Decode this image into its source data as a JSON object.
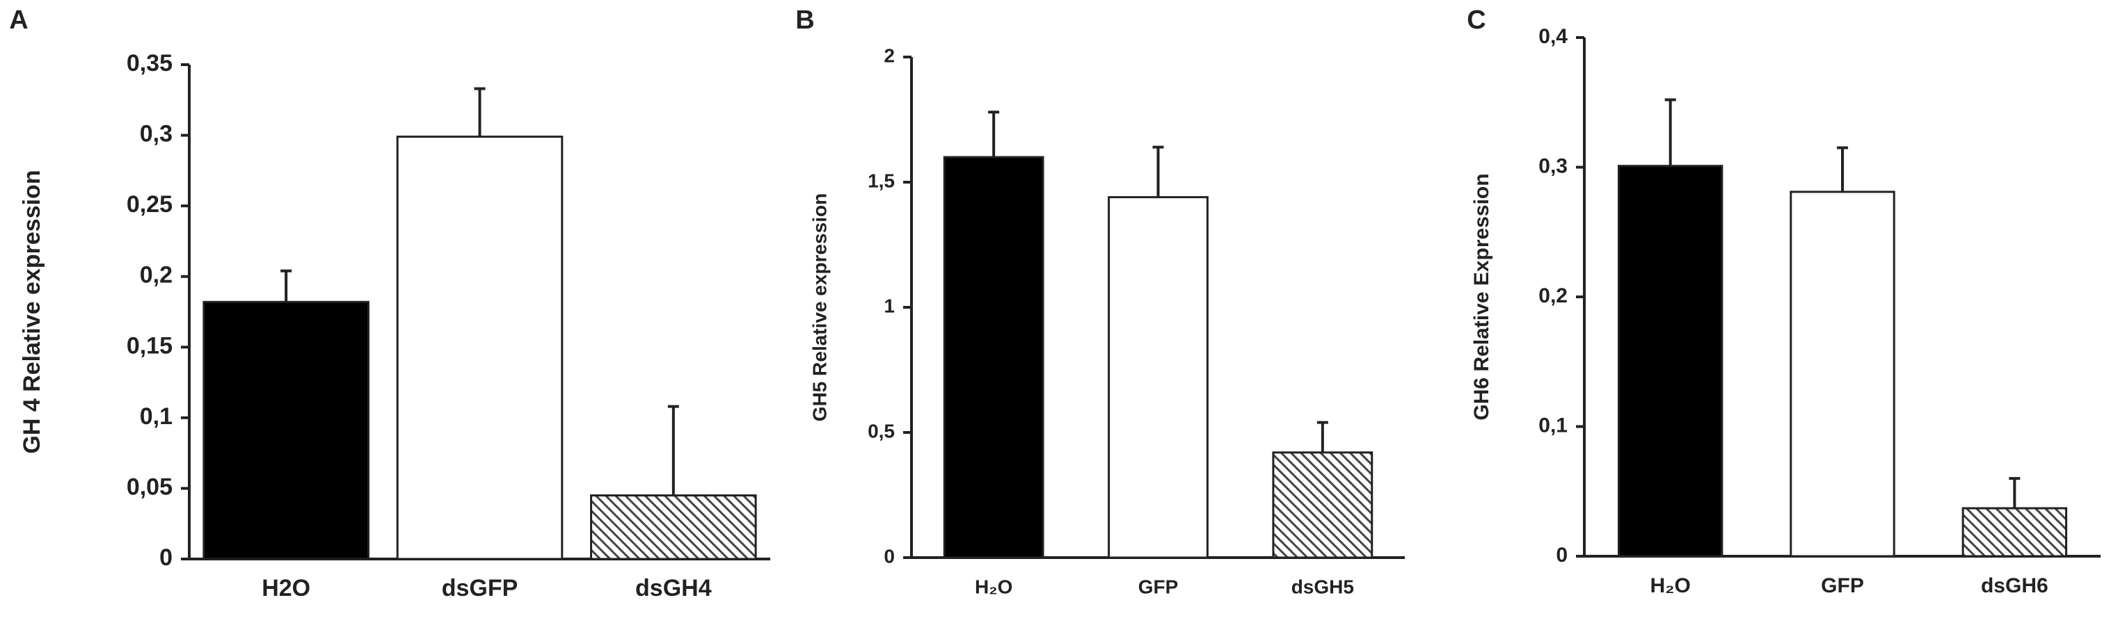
{
  "chart_data": [
    {
      "type": "bar",
      "panel": "A",
      "ylabel": "GH 4 Relative expression",
      "categories": [
        "H2O",
        "dsGFP",
        "dsGH4"
      ],
      "values": [
        0.182,
        0.299,
        0.045
      ],
      "errors": [
        0.022,
        0.034,
        0.063
      ],
      "colors": [
        "#000000",
        "#ffffff",
        "#555555"
      ],
      "hatched": [
        false,
        false,
        true
      ],
      "ylim": [
        0,
        0.35
      ],
      "yticks": [
        0,
        {
          "value": 0.05,
          "label": "0,05"
        },
        {
          "value": 0.1,
          "label": "0,1"
        },
        {
          "value": 0.15,
          "label": "0,15"
        },
        {
          "value": 0.2,
          "label": "0,2"
        },
        {
          "value": 0.25,
          "label": "0,25"
        },
        {
          "value": 0.3,
          "label": "0,3"
        },
        {
          "value": 0.35,
          "label": "0,35"
        }
      ]
    },
    {
      "type": "bar",
      "panel": "B",
      "ylabel": "GH5 Relative expression",
      "categories": [
        "H₂O",
        "GFP",
        "dsGH5"
      ],
      "values": [
        1.6,
        1.44,
        0.42
      ],
      "errors": [
        0.18,
        0.2,
        0.12
      ],
      "colors": [
        "#000000",
        "#ffffff",
        "#555555"
      ],
      "hatched": [
        false,
        false,
        true
      ],
      "ylim": [
        0,
        2
      ],
      "yticks": [
        0,
        {
          "value": 0.5,
          "label": "0,5"
        },
        1,
        {
          "value": 1.5,
          "label": "1,5"
        },
        2
      ]
    },
    {
      "type": "bar",
      "panel": "C",
      "ylabel": "GH6 Relative Expression",
      "categories": [
        "H₂O",
        "GFP",
        "dsGH6"
      ],
      "values": [
        0.301,
        0.281,
        0.037
      ],
      "errors": [
        0.051,
        0.034,
        0.023
      ],
      "colors": [
        "#000000",
        "#ffffff",
        "#555555"
      ],
      "hatched": [
        false,
        false,
        true
      ],
      "ylim": [
        0,
        0.4
      ],
      "yticks": [
        0,
        {
          "value": 0.1,
          "label": "0,1"
        },
        {
          "value": 0.2,
          "label": "0,2"
        },
        {
          "value": 0.3,
          "label": "0,3"
        },
        {
          "value": 0.4,
          "label": "0,4"
        }
      ]
    }
  ]
}
